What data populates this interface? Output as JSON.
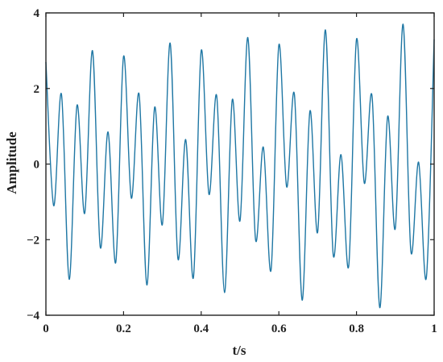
{
  "chart_data": {
    "type": "line",
    "title": "",
    "xlabel": "t/s",
    "ylabel": "Amplitude",
    "xlim": [
      0,
      1
    ],
    "ylim": [
      -4,
      4
    ],
    "x_ticks": [
      0,
      0.2,
      0.4,
      0.6,
      0.8,
      1
    ],
    "x_tick_labels": [
      "0",
      "0.2",
      "0.4",
      "0.6",
      "0.8",
      "1"
    ],
    "y_ticks": [
      -4,
      -2,
      0,
      2,
      4
    ],
    "y_tick_labels": [
      "−4",
      "−2",
      "0",
      "2",
      "4"
    ],
    "grid": false,
    "line_color": "#1f77a4",
    "series": [
      {
        "x": [
          0,
          0.02,
          0.04,
          0.06,
          0.08,
          0.1,
          0.12,
          0.14,
          0.16,
          0.18,
          0.2,
          0.22,
          0.24,
          0.26,
          0.28,
          0.3,
          0.32,
          0.34,
          0.36,
          0.38,
          0.4,
          0.42,
          0.44,
          0.46,
          0.48,
          0.5,
          0.52,
          0.54,
          0.56,
          0.58,
          0.6,
          0.62,
          0.64,
          0.66,
          0.68,
          0.7,
          0.72,
          0.74,
          0.76,
          0.78,
          0.8,
          0.82,
          0.84,
          0.86,
          0.88,
          0.9,
          0.92,
          0.94,
          0.96,
          0.98,
          1.0
        ],
        "values": [
          2.7,
          -1.1,
          1.85,
          -3.05,
          1.55,
          -1.3,
          3.0,
          -2.2,
          0.85,
          -2.6,
          2.85,
          -0.9,
          1.85,
          -3.2,
          1.5,
          -1.6,
          3.2,
          -2.5,
          0.65,
          -3.0,
          3.0,
          -0.8,
          1.8,
          -3.4,
          1.7,
          -1.5,
          3.35,
          -2.0,
          0.45,
          -2.8,
          3.15,
          -0.6,
          1.85,
          -3.6,
          1.4,
          -1.8,
          3.55,
          -2.4,
          0.25,
          -2.7,
          3.3,
          -0.5,
          1.8,
          -3.8,
          1.25,
          -1.7,
          3.7,
          -2.3,
          0.05,
          -3.0,
          3.3
        ]
      }
    ]
  }
}
